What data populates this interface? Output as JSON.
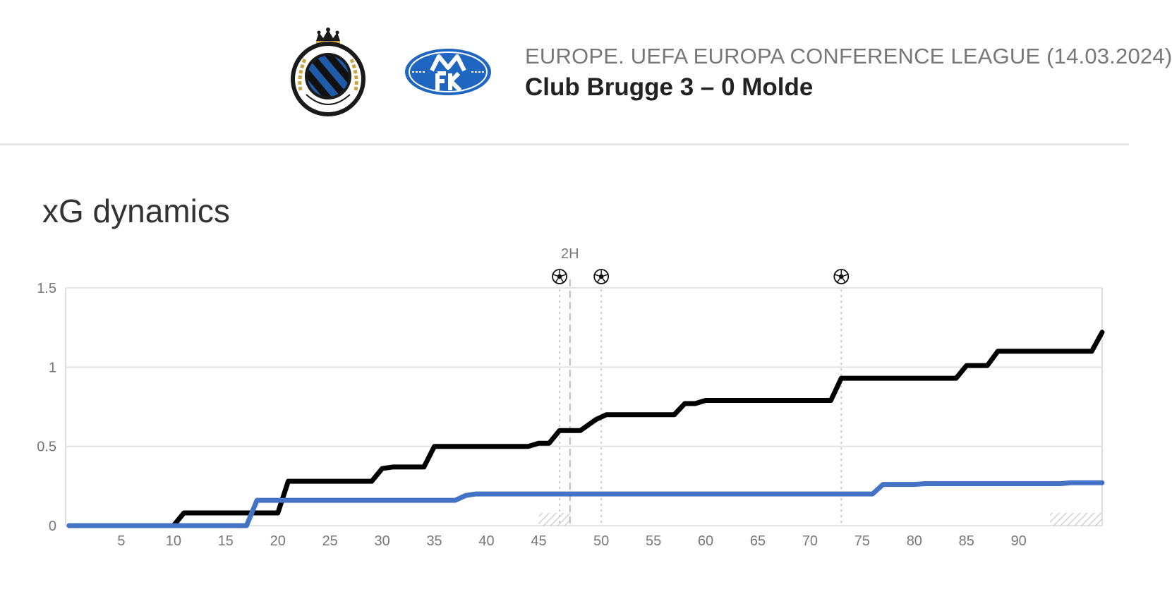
{
  "header": {
    "competition": "EUROPE. UEFA EUROPA CONFERENCE LEAGUE (14.03.2024)",
    "match": "Club Brugge 3 – 0 Molde",
    "home_logo_icon": "club-brugge-crest-icon",
    "away_logo_icon": "molde-fk-crest-icon"
  },
  "section": {
    "title": "xG dynamics"
  },
  "chart_data": {
    "type": "line",
    "xlabel": "",
    "ylabel": "",
    "ylim": [
      0,
      1.5
    ],
    "xlim": [
      0,
      99
    ],
    "y_ticks": [
      "0",
      "0.5",
      "1",
      "1.5"
    ],
    "y_tick_values": [
      0,
      0.5,
      1,
      1.5
    ],
    "x_ticks": [
      "5",
      "10",
      "15",
      "20",
      "25",
      "30",
      "35",
      "40",
      "45",
      "50",
      "55",
      "60",
      "65",
      "70",
      "75",
      "80",
      "85",
      "90"
    ],
    "x_tick_values": [
      5,
      10,
      15,
      20,
      25,
      30,
      35,
      40,
      45,
      51,
      56,
      61,
      66,
      71,
      76,
      81,
      86,
      91
    ],
    "period_marker": {
      "label": "2H",
      "x": 48
    },
    "goals": [
      47,
      51,
      74
    ],
    "goal_icon": "soccer-ball-icon",
    "stoppage_time": [
      [
        45,
        48
      ],
      [
        94,
        99
      ]
    ],
    "grid": true,
    "legend": "none",
    "series": [
      {
        "color": "#000000",
        "points": [
          [
            0,
            0
          ],
          [
            10,
            0
          ],
          [
            11,
            0.08
          ],
          [
            20,
            0.08
          ],
          [
            21,
            0.28
          ],
          [
            29,
            0.28
          ],
          [
            30,
            0.36
          ],
          [
            31,
            0.37
          ],
          [
            34,
            0.37
          ],
          [
            35,
            0.5
          ],
          [
            44,
            0.5
          ],
          [
            45,
            0.52
          ],
          [
            46,
            0.52
          ],
          [
            47,
            0.6
          ],
          [
            49,
            0.6
          ],
          [
            50.5,
            0.67
          ],
          [
            51.5,
            0.7
          ],
          [
            58,
            0.7
          ],
          [
            59,
            0.77
          ],
          [
            60,
            0.77
          ],
          [
            61,
            0.79
          ],
          [
            73,
            0.79
          ],
          [
            74,
            0.93
          ],
          [
            85,
            0.93
          ],
          [
            86,
            1.01
          ],
          [
            88,
            1.01
          ],
          [
            89,
            1.1
          ],
          [
            98,
            1.1
          ],
          [
            99,
            1.22
          ]
        ]
      },
      {
        "color": "#4472c4",
        "points": [
          [
            0,
            0
          ],
          [
            17,
            0
          ],
          [
            18,
            0.16
          ],
          [
            37,
            0.16
          ],
          [
            38,
            0.19
          ],
          [
            39,
            0.2
          ],
          [
            77,
            0.2
          ],
          [
            78,
            0.26
          ],
          [
            81,
            0.26
          ],
          [
            82,
            0.265
          ],
          [
            95,
            0.265
          ],
          [
            96,
            0.27
          ],
          [
            99,
            0.27
          ]
        ]
      }
    ]
  }
}
